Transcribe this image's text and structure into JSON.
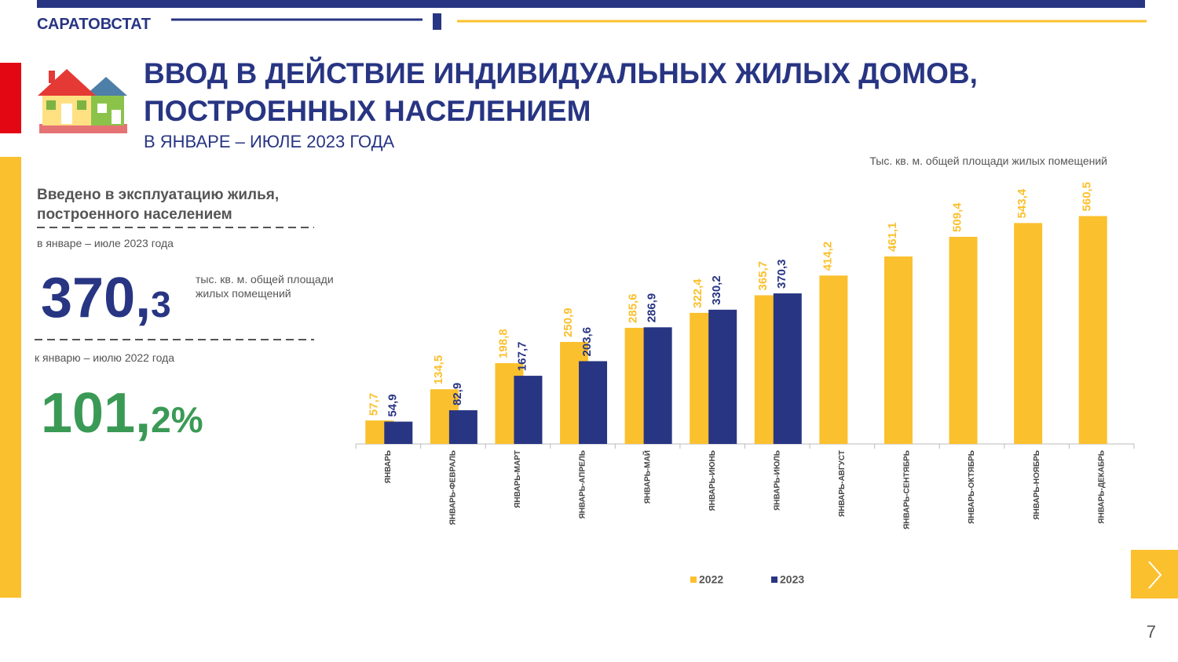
{
  "header": {
    "org": "САРАТОВСТАТ",
    "title_lines": [
      "ВВОД В ДЕЙСТВИЕ ИНДИВИДУАЛЬНЫХ ЖИЛЫХ ДОМОВ,",
      "ПОСТРОЕННЫХ НАСЕЛЕНИЕМ"
    ],
    "subtitle": "В ЯНВАРЕ – ИЮЛЕ 2023 ГОДА"
  },
  "summary": {
    "heading_lines": [
      "Введено в эксплуатацию жилья,",
      "построенного населением"
    ],
    "period": "в январе – июле 2023 года",
    "total_int": "370,",
    "total_frac": "3",
    "unit_lines": [
      "тыс. кв. м. общей площади",
      "жилых помещений"
    ],
    "compare_period": "к январю – июлю 2022 года",
    "ratio_int": "101,",
    "ratio_frac": "2%"
  },
  "page_number": "7",
  "chart_data": {
    "type": "bar",
    "unit_label": "Тыс. кв. м. общей площади жилых помещений",
    "categories": [
      "ЯНВАРЬ",
      "ЯНВАРЬ-ФЕВРАЛЬ",
      "ЯНВАРЬ-МАРТ",
      "ЯНВАРЬ-АПРЕЛЬ",
      "ЯНВАРЬ-МАЙ",
      "ЯНВАРЬ-ИЮНЬ",
      "ЯНВАРЬ-ИЮЛЬ",
      "ЯНВАРЬ-АВГУСТ",
      "ЯНВАРЬ-СЕНТЯБРЬ",
      "ЯНВАРЬ-ОКТЯБРЬ",
      "ЯНВАРЬ-НОЯБРЬ",
      "ЯНВАРЬ-ДЕКАБРЬ"
    ],
    "series": [
      {
        "name": "2022",
        "color": "#fbc02d",
        "values": [
          57.7,
          134.5,
          198.8,
          250.9,
          285.6,
          322.4,
          365.7,
          414.2,
          461.1,
          509.4,
          543.4,
          560.5
        ],
        "value_labels": [
          "57,7",
          "134,5",
          "198,8",
          "250,9",
          "285,6",
          "322,4",
          "365,7",
          "414,2",
          "461,1",
          "509,4",
          "543,4",
          "560,5"
        ]
      },
      {
        "name": "2023",
        "color": "#283583",
        "values": [
          54.9,
          82.9,
          167.7,
          203.6,
          286.9,
          330.2,
          370.3,
          null,
          null,
          null,
          null,
          null
        ],
        "value_labels": [
          "54,9",
          "82,9",
          "167,7",
          "203,6",
          "286,9",
          "330,2",
          "370,3",
          null,
          null,
          null,
          null,
          null
        ]
      }
    ],
    "ylim": [
      0,
      600
    ]
  }
}
